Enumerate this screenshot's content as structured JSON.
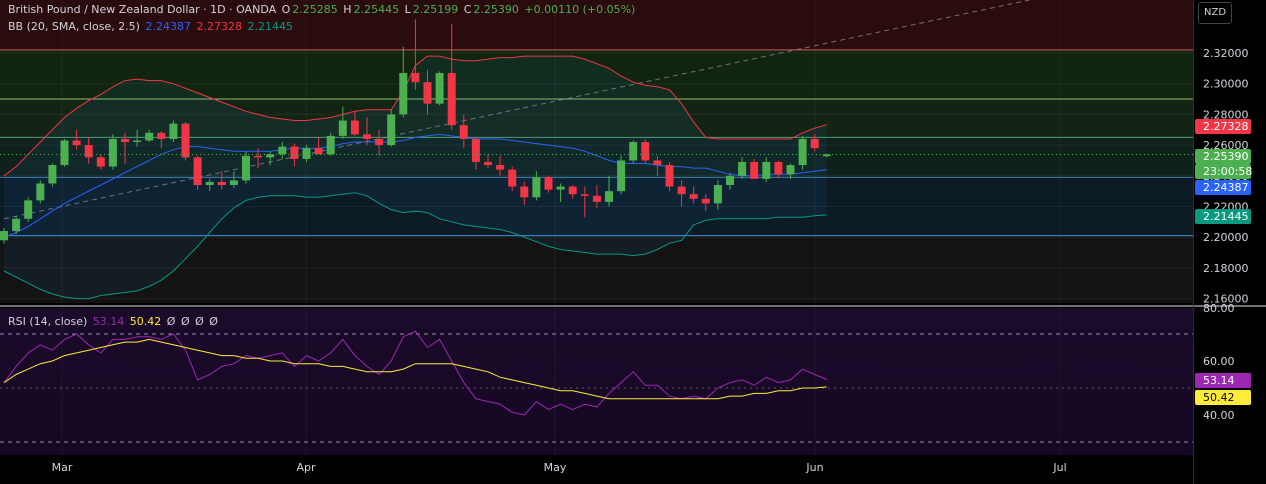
{
  "header": {
    "symbol": "British Pound / New Zealand Dollar · 1D · OANDA",
    "o_label": "O",
    "o": "2.25285",
    "h_label": "H",
    "h": "2.25445",
    "l_label": "L",
    "l": "2.25199",
    "c_label": "C",
    "c": "2.25390",
    "change": "+0.00110 (+0.05%)"
  },
  "bb_legend": {
    "label": "BB (20, SMA, close, 2.5)",
    "basis": "2.24387",
    "upper": "2.27328",
    "lower": "2.21445"
  },
  "rsi_legend": {
    "label": "RSI (14, close)",
    "rsi": "53.14",
    "ma": "50.42",
    "extra": [
      "Ø",
      "Ø",
      "Ø",
      "Ø"
    ]
  },
  "currency": "NZD",
  "badges": {
    "upper": "2.27328",
    "price": "2.25390",
    "countdown": "23:00:58",
    "basis": "2.24387",
    "lower": "2.21445",
    "rsi": "53.14",
    "rsi_ma": "50.42"
  },
  "colors": {
    "up": "#4caf50",
    "down": "#f23645",
    "basis": "#2962ff",
    "upper": "#f23645",
    "lower": "#089981",
    "rsi": "#9c27b0",
    "rsi_ma": "#ffeb3b"
  },
  "chart_data": [
    {
      "type": "candlestick",
      "title": "British Pound / New Zealand Dollar · 1D · OANDA",
      "y_ticks": [
        "2.32000",
        "2.30000",
        "2.28000",
        "2.26000",
        "2.24000",
        "2.22000",
        "2.20000",
        "2.18000",
        "2.16000"
      ],
      "x_ticks": [
        "Mar",
        "Apr",
        "May",
        "Jun",
        "Jul"
      ],
      "ylim": [
        2.155,
        2.355
      ],
      "candles": [
        [
          2.198,
          2.206,
          2.196,
          2.204
        ],
        [
          2.204,
          2.214,
          2.202,
          2.212
        ],
        [
          2.212,
          2.226,
          2.21,
          2.224
        ],
        [
          2.224,
          2.237,
          2.222,
          2.235
        ],
        [
          2.235,
          2.248,
          2.233,
          2.247
        ],
        [
          2.247,
          2.264,
          2.246,
          2.263
        ],
        [
          2.263,
          2.27,
          2.257,
          2.26
        ],
        [
          2.26,
          2.265,
          2.248,
          2.252
        ],
        [
          2.252,
          2.254,
          2.244,
          2.246
        ],
        [
          2.246,
          2.267,
          2.244,
          2.264
        ],
        [
          2.264,
          2.268,
          2.248,
          2.262
        ],
        [
          2.262,
          2.27,
          2.259,
          2.263
        ],
        [
          2.263,
          2.27,
          2.262,
          2.268
        ],
        [
          2.268,
          2.269,
          2.258,
          2.264
        ],
        [
          2.264,
          2.276,
          2.262,
          2.274
        ],
        [
          2.274,
          2.275,
          2.25,
          2.252
        ],
        [
          2.252,
          2.253,
          2.231,
          2.234
        ],
        [
          2.234,
          2.238,
          2.23,
          2.236
        ],
        [
          2.236,
          2.243,
          2.231,
          2.234
        ],
        [
          2.234,
          2.243,
          2.232,
          2.237
        ],
        [
          2.237,
          2.256,
          2.235,
          2.253
        ],
        [
          2.253,
          2.258,
          2.245,
          2.252
        ],
        [
          2.252,
          2.256,
          2.247,
          2.254
        ],
        [
          2.254,
          2.262,
          2.251,
          2.259
        ],
        [
          2.259,
          2.261,
          2.246,
          2.251
        ],
        [
          2.251,
          2.26,
          2.249,
          2.258
        ],
        [
          2.258,
          2.265,
          2.254,
          2.254
        ],
        [
          2.254,
          2.268,
          2.253,
          2.266
        ],
        [
          2.266,
          2.285,
          2.264,
          2.276
        ],
        [
          2.276,
          2.282,
          2.266,
          2.267
        ],
        [
          2.267,
          2.278,
          2.26,
          2.264
        ],
        [
          2.264,
          2.27,
          2.253,
          2.26
        ],
        [
          2.26,
          2.283,
          2.259,
          2.28
        ],
        [
          2.28,
          2.324,
          2.278,
          2.307
        ],
        [
          2.307,
          2.342,
          2.296,
          2.301
        ],
        [
          2.301,
          2.309,
          2.28,
          2.287
        ],
        [
          2.287,
          2.308,
          2.286,
          2.307
        ],
        [
          2.307,
          2.339,
          2.27,
          2.273
        ],
        [
          2.273,
          2.28,
          2.258,
          2.264
        ],
        [
          2.264,
          2.265,
          2.244,
          2.249
        ],
        [
          2.249,
          2.254,
          2.245,
          2.247
        ],
        [
          2.247,
          2.253,
          2.24,
          2.244
        ],
        [
          2.244,
          2.246,
          2.23,
          2.233
        ],
        [
          2.233,
          2.236,
          2.221,
          2.226
        ],
        [
          2.226,
          2.243,
          2.224,
          2.239
        ],
        [
          2.239,
          2.24,
          2.229,
          2.231
        ],
        [
          2.231,
          2.235,
          2.223,
          2.233
        ],
        [
          2.233,
          2.234,
          2.225,
          2.228
        ],
        [
          2.228,
          2.233,
          2.213,
          2.227
        ],
        [
          2.227,
          2.234,
          2.219,
          2.223
        ],
        [
          2.223,
          2.24,
          2.22,
          2.23
        ],
        [
          2.23,
          2.253,
          2.228,
          2.25
        ],
        [
          2.25,
          2.263,
          2.248,
          2.262
        ],
        [
          2.262,
          2.264,
          2.248,
          2.25
        ],
        [
          2.25,
          2.253,
          2.24,
          2.247
        ],
        [
          2.247,
          2.249,
          2.23,
          2.233
        ],
        [
          2.233,
          2.237,
          2.22,
          2.228
        ],
        [
          2.228,
          2.233,
          2.222,
          2.225
        ],
        [
          2.225,
          2.228,
          2.217,
          2.222
        ],
        [
          2.222,
          2.237,
          2.218,
          2.234
        ],
        [
          2.234,
          2.242,
          2.231,
          2.24
        ],
        [
          2.24,
          2.252,
          2.238,
          2.249
        ],
        [
          2.249,
          2.251,
          2.238,
          2.238
        ],
        [
          2.238,
          2.252,
          2.236,
          2.249
        ],
        [
          2.249,
          2.25,
          2.239,
          2.241
        ],
        [
          2.241,
          2.248,
          2.238,
          2.247
        ],
        [
          2.247,
          2.266,
          2.244,
          2.264
        ],
        [
          2.264,
          2.267,
          2.256,
          2.258
        ],
        [
          2.2528,
          2.2544,
          2.252,
          2.2539
        ]
      ],
      "bb_basis": [
        2.2,
        2.203,
        2.207,
        2.212,
        2.217,
        2.222,
        2.226,
        2.23,
        2.234,
        2.238,
        2.242,
        2.246,
        2.25,
        2.254,
        2.257,
        2.259,
        2.259,
        2.258,
        2.257,
        2.256,
        2.256,
        2.256,
        2.256,
        2.257,
        2.258,
        2.258,
        2.258,
        2.259,
        2.261,
        2.262,
        2.262,
        2.262,
        2.262,
        2.263,
        2.265,
        2.266,
        2.267,
        2.266,
        2.265,
        2.264,
        2.264,
        2.264,
        2.263,
        2.262,
        2.261,
        2.26,
        2.259,
        2.258,
        2.256,
        2.253,
        2.25,
        2.248,
        2.248,
        2.248,
        2.247,
        2.246,
        2.246,
        2.245,
        2.245,
        2.243,
        2.241,
        2.24,
        2.24,
        2.241,
        2.241,
        2.241,
        2.242,
        2.243,
        2.2439
      ],
      "bb_upper": [
        2.24,
        2.246,
        2.254,
        2.262,
        2.27,
        2.278,
        2.284,
        2.289,
        2.293,
        2.298,
        2.302,
        2.303,
        2.302,
        2.302,
        2.3,
        2.297,
        2.294,
        2.291,
        2.288,
        2.285,
        2.282,
        2.28,
        2.278,
        2.277,
        2.276,
        2.276,
        2.277,
        2.278,
        2.28,
        2.282,
        2.283,
        2.283,
        2.283,
        2.295,
        2.312,
        2.318,
        2.318,
        2.316,
        2.315,
        2.315,
        2.316,
        2.317,
        2.317,
        2.318,
        2.318,
        2.318,
        2.318,
        2.318,
        2.316,
        2.313,
        2.31,
        2.305,
        2.301,
        2.299,
        2.298,
        2.296,
        2.287,
        2.275,
        2.265,
        2.264,
        2.264,
        2.264,
        2.264,
        2.264,
        2.264,
        2.264,
        2.268,
        2.271,
        2.2733
      ],
      "bb_lower": [
        2.178,
        2.174,
        2.17,
        2.166,
        2.163,
        2.161,
        2.16,
        2.16,
        2.162,
        2.163,
        2.164,
        2.165,
        2.168,
        2.172,
        2.178,
        2.186,
        2.194,
        2.203,
        2.212,
        2.219,
        2.224,
        2.226,
        2.227,
        2.227,
        2.227,
        2.226,
        2.226,
        2.227,
        2.228,
        2.229,
        2.227,
        2.222,
        2.218,
        2.216,
        2.217,
        2.216,
        2.212,
        2.21,
        2.208,
        2.207,
        2.206,
        2.205,
        2.203,
        2.2,
        2.197,
        2.194,
        2.192,
        2.191,
        2.19,
        2.189,
        2.189,
        2.189,
        2.188,
        2.189,
        2.192,
        2.196,
        2.198,
        2.208,
        2.211,
        2.212,
        2.212,
        2.212,
        2.212,
        2.212,
        2.213,
        2.213,
        2.213,
        2.214,
        2.2145
      ],
      "horizontal_levels": [
        2.322,
        2.29,
        2.265,
        2.239,
        2.201
      ],
      "trendline": {
        "from": [
          0,
          2.212
        ],
        "to": [
          85,
          2.355
        ]
      }
    },
    {
      "type": "line",
      "title": "RSI (14, close)",
      "y_ticks": [
        "80.00",
        "60.00",
        "40.00"
      ],
      "ylim": [
        20,
        80
      ],
      "bands": [
        70,
        30
      ],
      "rsi": [
        52,
        58,
        63,
        66,
        64,
        68,
        70,
        66,
        63,
        68,
        68,
        69,
        69,
        68,
        70,
        64,
        53,
        55,
        58,
        59,
        62,
        61,
        62,
        63,
        58,
        62,
        60,
        63,
        68,
        62,
        58,
        55,
        60,
        69,
        71,
        65,
        68,
        60,
        52,
        46,
        45,
        44,
        41,
        40,
        45,
        42,
        44,
        42,
        44,
        43,
        48,
        52,
        56,
        51,
        51,
        47,
        46,
        47,
        46,
        50,
        52,
        53,
        51,
        54,
        52,
        53,
        57,
        55,
        53.14
      ],
      "rsi_ma": [
        52,
        55,
        57,
        59,
        60,
        62,
        63,
        64,
        65,
        66,
        67,
        67,
        68,
        67,
        66,
        65,
        64,
        63,
        62,
        62,
        61,
        61,
        60,
        60,
        59,
        59,
        59,
        58,
        58,
        57,
        56,
        56,
        56,
        57,
        59,
        59,
        59,
        59,
        58,
        57,
        56,
        54,
        53,
        52,
        51,
        50,
        49,
        49,
        48,
        47,
        46,
        46,
        46,
        46,
        46,
        46,
        46,
        46,
        46,
        46,
        47,
        47,
        48,
        48,
        49,
        49,
        50,
        50,
        50.42
      ]
    }
  ]
}
